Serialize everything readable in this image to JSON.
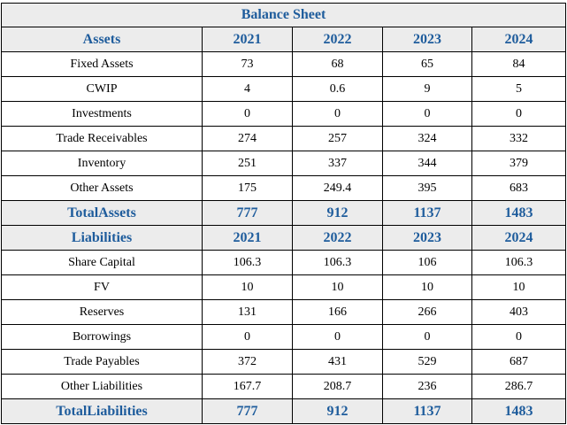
{
  "title": "Balance Sheet",
  "assets": {
    "header": "Assets",
    "years": [
      "2021",
      "2022",
      "2023",
      "2024"
    ],
    "rows": [
      {
        "label": "Fixed Assets",
        "values": [
          "73",
          "68",
          "65",
          "84"
        ]
      },
      {
        "label": "CWIP",
        "values": [
          "4",
          "0.6",
          "9",
          "5"
        ]
      },
      {
        "label": "Investments",
        "values": [
          "0",
          "0",
          "0",
          "0"
        ]
      },
      {
        "label": "Trade Receivables",
        "values": [
          "274",
          "257",
          "324",
          "332"
        ]
      },
      {
        "label": "Inventory",
        "values": [
          "251",
          "337",
          "344",
          "379"
        ]
      },
      {
        "label": "Other Assets",
        "values": [
          "175",
          "249.4",
          "395",
          "683"
        ]
      }
    ],
    "total": {
      "label": "TotalAssets",
      "values": [
        "777",
        "912",
        "1137",
        "1483"
      ]
    }
  },
  "liabilities": {
    "header": "Liabilities",
    "years": [
      "2021",
      "2022",
      "2023",
      "2024"
    ],
    "rows": [
      {
        "label": "Share Capital",
        "values": [
          "106.3",
          "106.3",
          "106",
          "106.3"
        ]
      },
      {
        "label": "FV",
        "values": [
          "10",
          "10",
          "10",
          "10"
        ]
      },
      {
        "label": "Reserves",
        "values": [
          "131",
          "166",
          "266",
          "403"
        ]
      },
      {
        "label": "Borrowings",
        "values": [
          "0",
          "0",
          "0",
          "0"
        ]
      },
      {
        "label": "Trade Payables",
        "values": [
          "372",
          "431",
          "529",
          "687"
        ]
      },
      {
        "label": "Other Liabilities",
        "values": [
          "167.7",
          "208.7",
          "236",
          "286.7"
        ]
      }
    ],
    "total": {
      "label": "TotalLiabilities",
      "values": [
        "777",
        "912",
        "1137",
        "1483"
      ]
    }
  },
  "colors": {
    "header_text": "#1e5c9c",
    "shaded_bg": "#ececec",
    "border": "#000000"
  }
}
